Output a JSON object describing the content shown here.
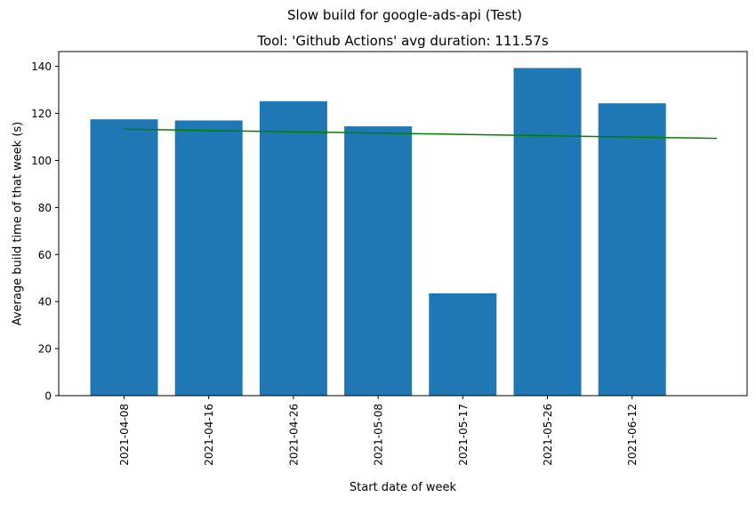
{
  "figure": {
    "suptitle": "Slow build for google-ads-api (Test)"
  },
  "chart_data": {
    "type": "bar",
    "title": "Tool: 'Github Actions' avg duration: 111.57s",
    "xlabel": "Start date of week",
    "ylabel": "Average build time of that week (s)",
    "categories": [
      "2021-04-08",
      "2021-04-16",
      "2021-04-26",
      "2021-05-08",
      "2021-05-17",
      "2021-05-26",
      "2021-06-12"
    ],
    "values": [
      117.5,
      117.0,
      125.2,
      114.5,
      43.5,
      139.3,
      124.3
    ],
    "ylim": [
      0,
      146.3
    ],
    "yticks": [
      0,
      20,
      40,
      60,
      80,
      100,
      120,
      140
    ],
    "grid": false,
    "bar_color": "#1f77b4",
    "trend_line": {
      "color": "#008000",
      "x_start_index": 0,
      "x_end_index": 7,
      "y_start": 113.3,
      "y_end": 109.4
    }
  }
}
